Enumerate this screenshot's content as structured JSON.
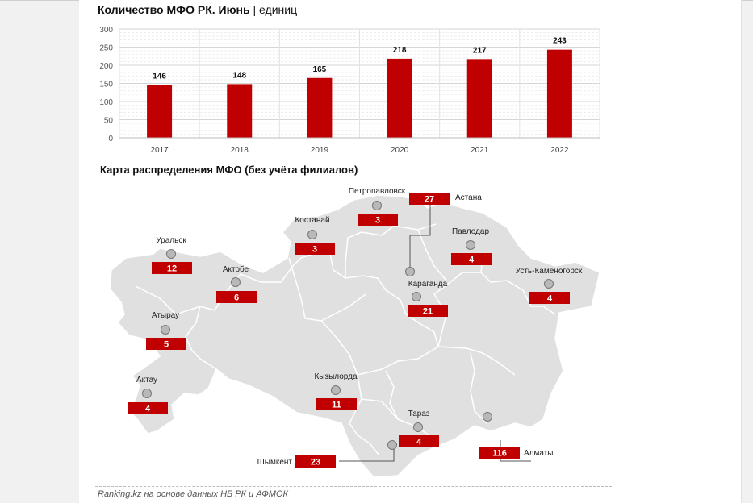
{
  "header": {
    "title": "Количество МФО РК. Июнь",
    "separator": "|",
    "unit": "единиц"
  },
  "chart_data": {
    "type": "bar",
    "categories": [
      "2017",
      "2018",
      "2019",
      "2020",
      "2021",
      "2022"
    ],
    "values": [
      146,
      148,
      165,
      218,
      217,
      243
    ],
    "yticks": [
      0,
      50,
      100,
      150,
      200,
      250,
      300
    ],
    "ylim": [
      0,
      300
    ],
    "title": "Количество МФО РК. Июнь | единиц",
    "xlabel": "",
    "ylabel": "",
    "grid": true,
    "bar_color": "#c00000"
  },
  "map": {
    "title": "Карта распределения МФО (без учёта филиалов)",
    "fill_color": "#e0e0e0",
    "label_color": "#c00000",
    "cities": [
      {
        "name": "Уральск",
        "count": "12"
      },
      {
        "name": "Актобе",
        "count": "6"
      },
      {
        "name": "Атырау",
        "count": "5"
      },
      {
        "name": "Актау",
        "count": "4"
      },
      {
        "name": "Костанай",
        "count": "3"
      },
      {
        "name": "Петропавловск",
        "count": "3"
      },
      {
        "name": "Астана",
        "count": "27"
      },
      {
        "name": "Павлодар",
        "count": "4"
      },
      {
        "name": "Усть-Каменогорск",
        "count": "4"
      },
      {
        "name": "Караганда",
        "count": "21"
      },
      {
        "name": "Кызылорда",
        "count": "11"
      },
      {
        "name": "Тараз",
        "count": "4"
      },
      {
        "name": "Шымкент",
        "count": "23"
      },
      {
        "name": "Алматы",
        "count": "116"
      }
    ]
  },
  "footer": {
    "source": "Ranking.kz на основе данных НБ РК и АФМОК"
  }
}
